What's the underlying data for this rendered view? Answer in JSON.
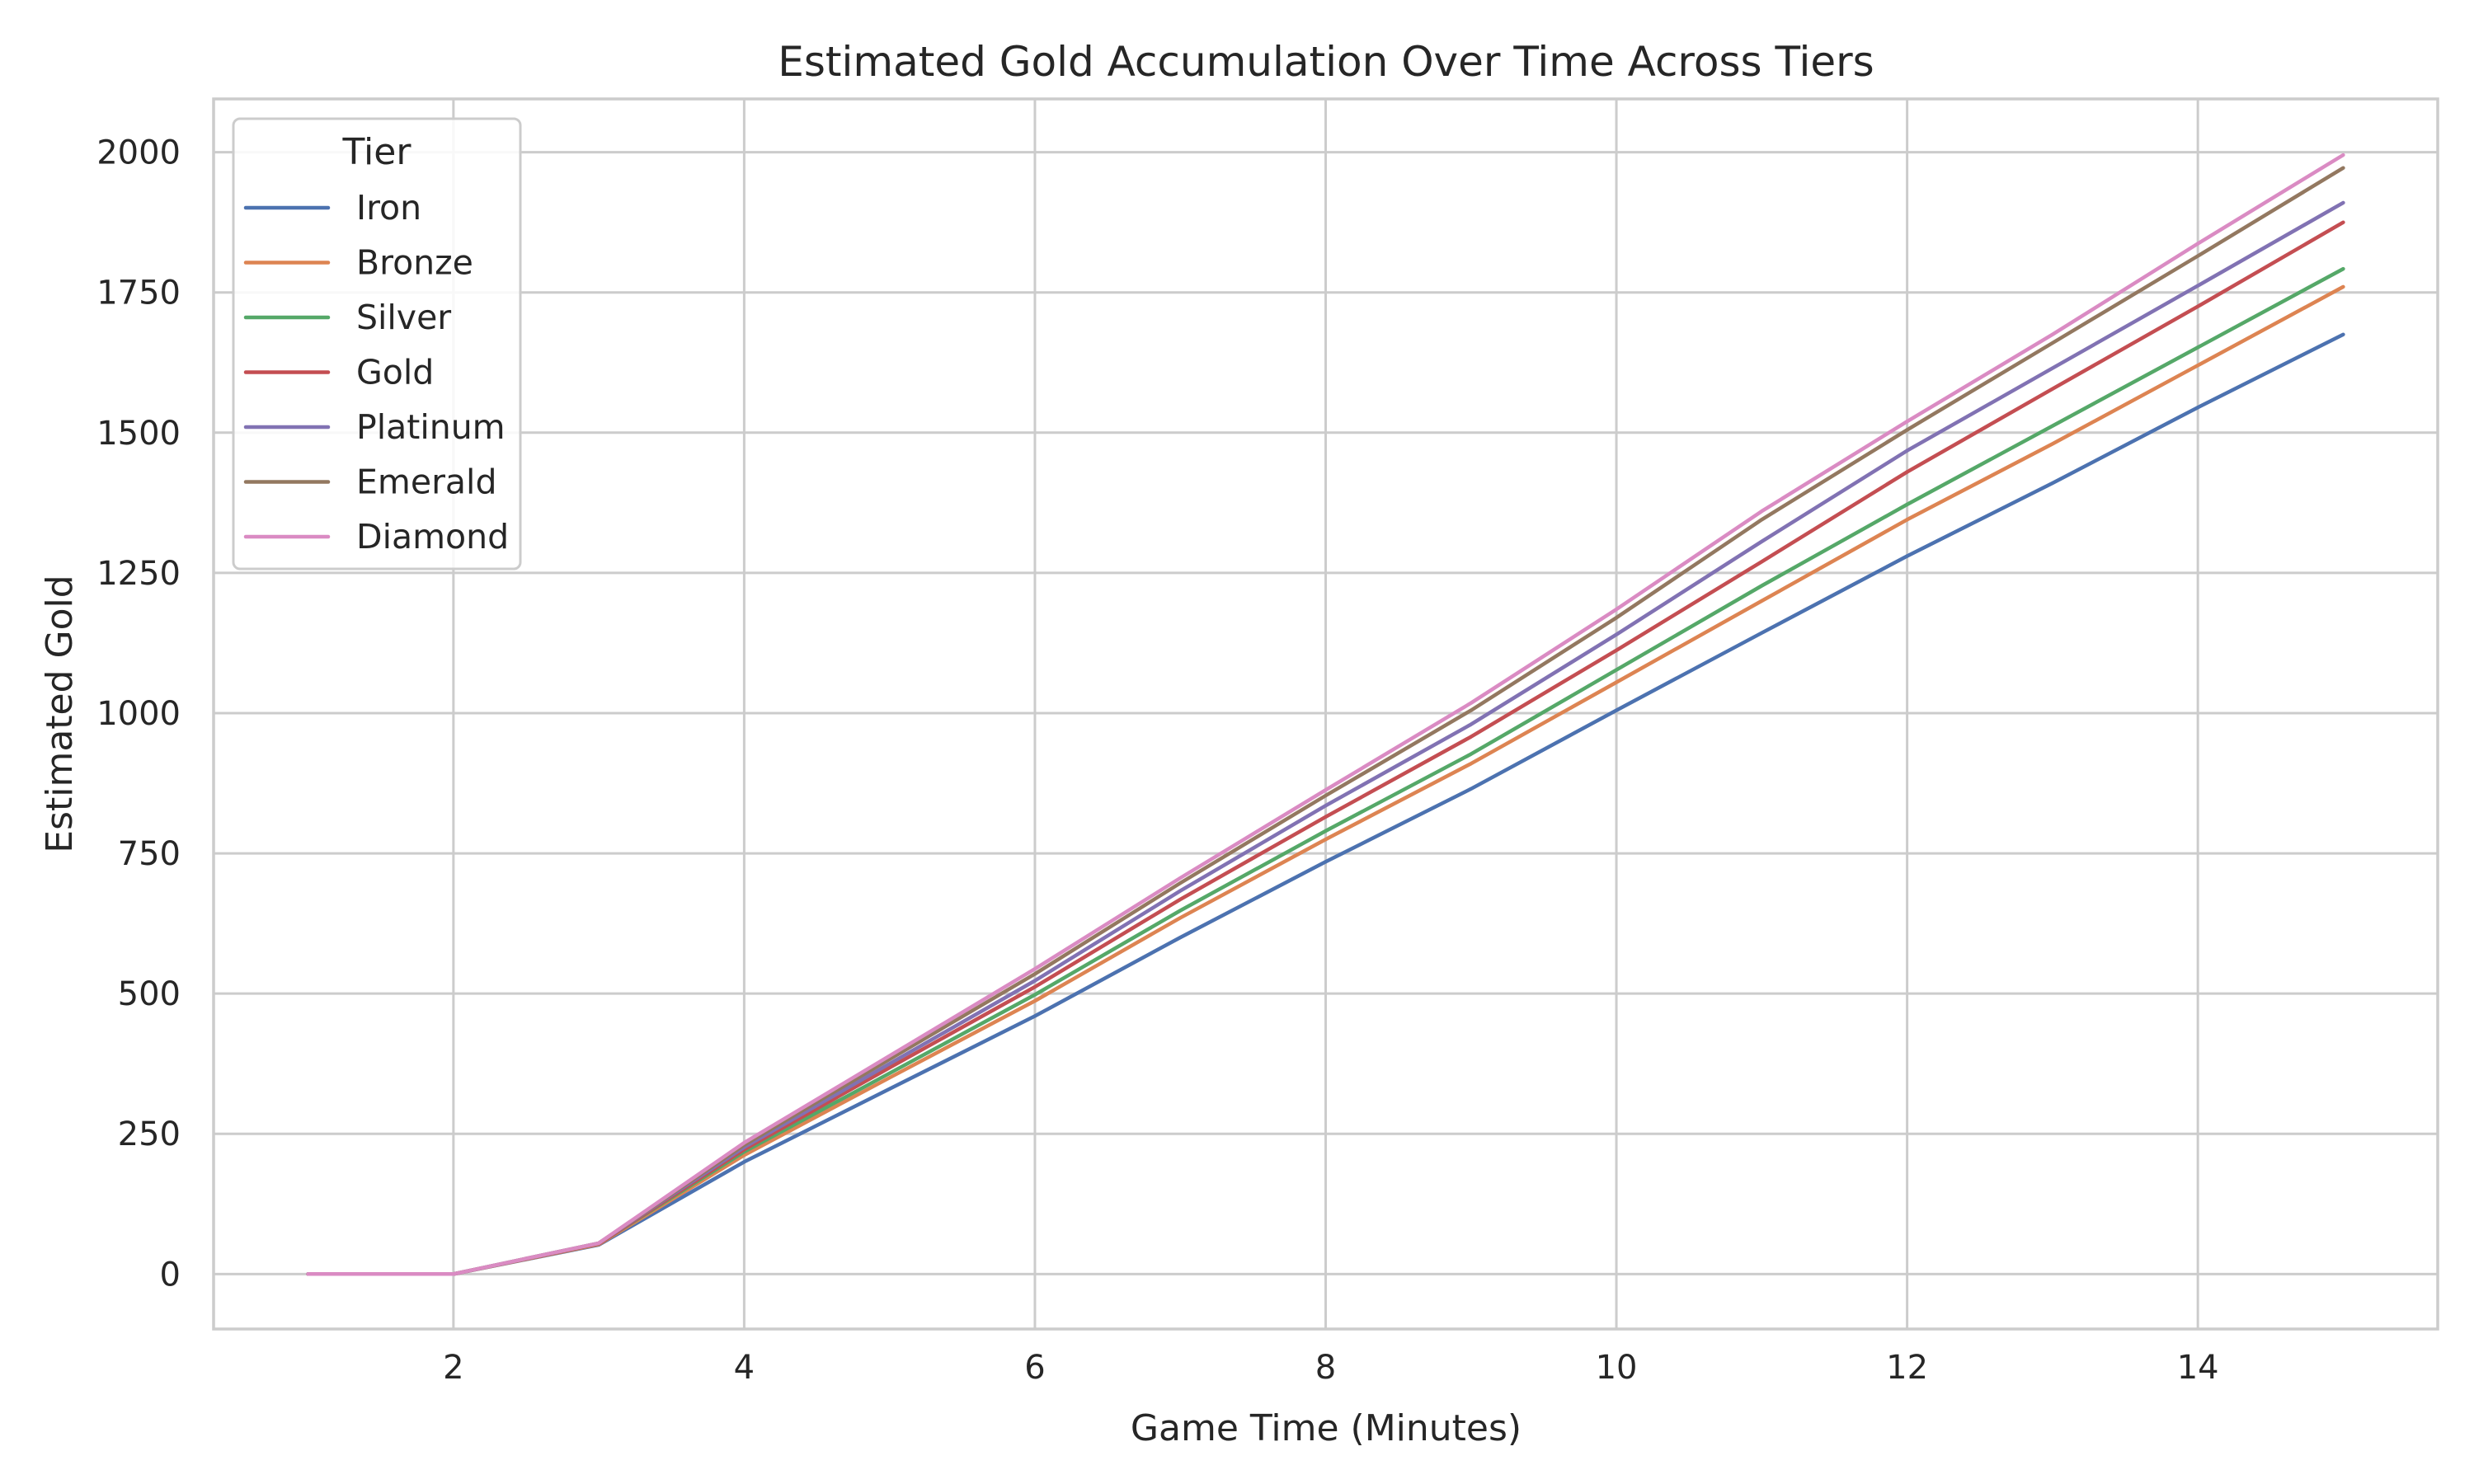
{
  "chart_data": {
    "type": "line",
    "title": "Estimated Gold Accumulation Over Time Across Tiers",
    "xlabel": "Game Time (Minutes)",
    "ylabel": "Estimated Gold",
    "xlim": [
      0.35,
      15.65
    ],
    "ylim": [
      -98,
      2095
    ],
    "xticks": [
      2,
      4,
      6,
      8,
      10,
      12,
      14
    ],
    "yticks": [
      0,
      250,
      500,
      750,
      1000,
      1250,
      1500,
      1750,
      2000
    ],
    "grid": true,
    "legend": {
      "title": "Tier",
      "placement": "top-left"
    },
    "x": [
      1,
      2,
      3,
      4,
      5,
      6,
      7,
      8,
      9,
      10,
      11,
      12,
      13,
      14,
      15
    ],
    "series": [
      {
        "name": "Iron",
        "color": "#4c72b0",
        "values": [
          0,
          0,
          52,
          200,
          330,
          460,
          600,
          735,
          865,
          1005,
          1143,
          1280,
          1410,
          1545,
          1675
        ]
      },
      {
        "name": "Bronze",
        "color": "#dd8452",
        "values": [
          0,
          0,
          53,
          212,
          350,
          487,
          635,
          775,
          910,
          1055,
          1200,
          1345,
          1480,
          1620,
          1760
        ]
      },
      {
        "name": "Silver",
        "color": "#55a868",
        "values": [
          0,
          0,
          54,
          218,
          358,
          498,
          648,
          790,
          927,
          1077,
          1227,
          1372,
          1512,
          1652,
          1792
        ]
      },
      {
        "name": "Gold",
        "color": "#c44e52",
        "values": [
          0,
          0,
          54,
          222,
          368,
          512,
          668,
          815,
          958,
          1112,
          1270,
          1430,
          1578,
          1725,
          1875
        ]
      },
      {
        "name": "Platinum",
        "color": "#8172b3",
        "values": [
          0,
          0,
          55,
          226,
          375,
          523,
          683,
          835,
          980,
          1140,
          1306,
          1468,
          1615,
          1762,
          1910
        ]
      },
      {
        "name": "Emerald",
        "color": "#937860",
        "values": [
          0,
          0,
          55,
          230,
          383,
          535,
          697,
          853,
          1005,
          1170,
          1345,
          1505,
          1660,
          1815,
          1972
        ]
      },
      {
        "name": "Diamond",
        "color": "#da8bc3",
        "values": [
          0,
          0,
          55,
          234,
          389,
          544,
          706,
          863,
          1018,
          1185,
          1360,
          1520,
          1675,
          1837,
          1995
        ]
      }
    ]
  }
}
